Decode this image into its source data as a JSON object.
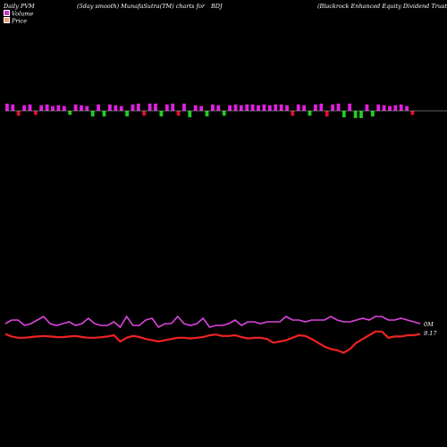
{
  "header": {
    "left": "Daily PVM",
    "mid1": "(5day smooth) MunafaSutra(TM) charts for",
    "symbol": "BDJ",
    "right": "(Blackrock Enhanced Equity Dividend Trust) MunafaSutra.com"
  },
  "legend": [
    {
      "label": "Volume",
      "color": "#cc33cc"
    },
    {
      "label": "Price",
      "color": "#f5a07a"
    }
  ],
  "end_labels": {
    "volume": "0M",
    "price": "9.17"
  },
  "colors": {
    "up": "#e020e0",
    "down": "#e01030",
    "green": "#22cc22",
    "volume_line": "#dd44dd",
    "price_line": "#ee2222",
    "baseline": "#bbbbbb"
  },
  "chart_data": [
    {
      "type": "bar",
      "title": "",
      "note": "Volume bars above/below a baseline (magnitude relative)",
      "values": [
        0.9,
        0.8,
        -0.6,
        0.7,
        0.8,
        -0.5,
        0.7,
        0.8,
        0.6,
        0.7,
        0.6,
        -0.5,
        0.8,
        0.7,
        0.6,
        -0.7,
        0.8,
        -0.7,
        0.8,
        0.7,
        0.6,
        -0.7,
        0.8,
        0.9,
        -0.6,
        0.9,
        0.9,
        -0.7,
        0.8,
        0.9,
        -0.6,
        0.9,
        -0.8,
        0.7,
        0.6,
        -0.7,
        0.8,
        0.7,
        -0.6,
        0.7,
        0.8,
        0.7,
        0.8,
        0.8,
        0.7,
        0.8,
        0.7,
        0.8,
        0.8,
        0.7,
        -0.6,
        0.8,
        0.7,
        -0.6,
        0.8,
        0.9,
        -0.7,
        0.8,
        0.9,
        -0.8,
        0.9,
        -0.9,
        -0.9,
        0.8,
        -0.7,
        0.8,
        0.7,
        0.6,
        0.7,
        0.8,
        0.6,
        -0.5
      ],
      "bar_colors": [
        "up",
        "up",
        "down",
        "up",
        "up",
        "down",
        "up",
        "up",
        "up",
        "up",
        "up",
        "green",
        "up",
        "up",
        "up",
        "green",
        "up",
        "green",
        "up",
        "up",
        "up",
        "green",
        "up",
        "up",
        "down",
        "up",
        "up",
        "green",
        "up",
        "up",
        "down",
        "up",
        "green",
        "up",
        "up",
        "green",
        "up",
        "up",
        "green",
        "up",
        "up",
        "up",
        "up",
        "up",
        "up",
        "up",
        "up",
        "up",
        "up",
        "up",
        "down",
        "up",
        "up",
        "green",
        "up",
        "up",
        "down",
        "up",
        "up",
        "green",
        "up",
        "green",
        "green",
        "up",
        "green",
        "up",
        "up",
        "up",
        "up",
        "up",
        "up",
        "down"
      ]
    },
    {
      "type": "line",
      "title": "",
      "series": [
        {
          "values": [
            0.5,
            0.3,
            0.3,
            0.6,
            0.5,
            0.3,
            0.1,
            0.5,
            0.6,
            0.5,
            0.4,
            0.6,
            0.5,
            0.2,
            0.5,
            0.6,
            0.6,
            0.4,
            0.7,
            0.1,
            0.6,
            0.6,
            0.3,
            0.2,
            0.7,
            0.5,
            0.5,
            0.1,
            0.5,
            0.6,
            0.5,
            0.2,
            0.7,
            0.6,
            0.6,
            0.5,
            0.3,
            0.6,
            0.4,
            0.4,
            0.5,
            0.4,
            0.4,
            0.4,
            0.1,
            0.3,
            0.3,
            0.4,
            0.3,
            0.3,
            0.3,
            0.1,
            0.3,
            0.4,
            0.4,
            0.3,
            0.2,
            0.3,
            0.1,
            0.1,
            0.3,
            0.3,
            0.2,
            0.3,
            0.4,
            0.5
          ]
        },
        {
          "values": [
            0.2,
            0.3,
            0.35,
            0.35,
            0.32,
            0.3,
            0.28,
            0.3,
            0.32,
            0.33,
            0.3,
            0.28,
            0.32,
            0.35,
            0.35,
            0.33,
            0.3,
            0.25,
            0.5,
            0.35,
            0.28,
            0.32,
            0.4,
            0.45,
            0.5,
            0.45,
            0.4,
            0.35,
            0.35,
            0.38,
            0.35,
            0.32,
            0.25,
            0.22,
            0.28,
            0.28,
            0.25,
            0.32,
            0.38,
            0.35,
            0.35,
            0.4,
            0.55,
            0.5,
            0.45,
            0.35,
            0.25,
            0.28,
            0.4,
            0.55,
            0.7,
            0.8,
            0.85,
            0.95,
            0.8,
            0.55,
            0.4,
            0.25,
            0.1,
            0.1,
            0.35,
            0.3,
            0.3,
            0.25,
            0.25,
            0.2
          ]
        }
      ]
    }
  ]
}
